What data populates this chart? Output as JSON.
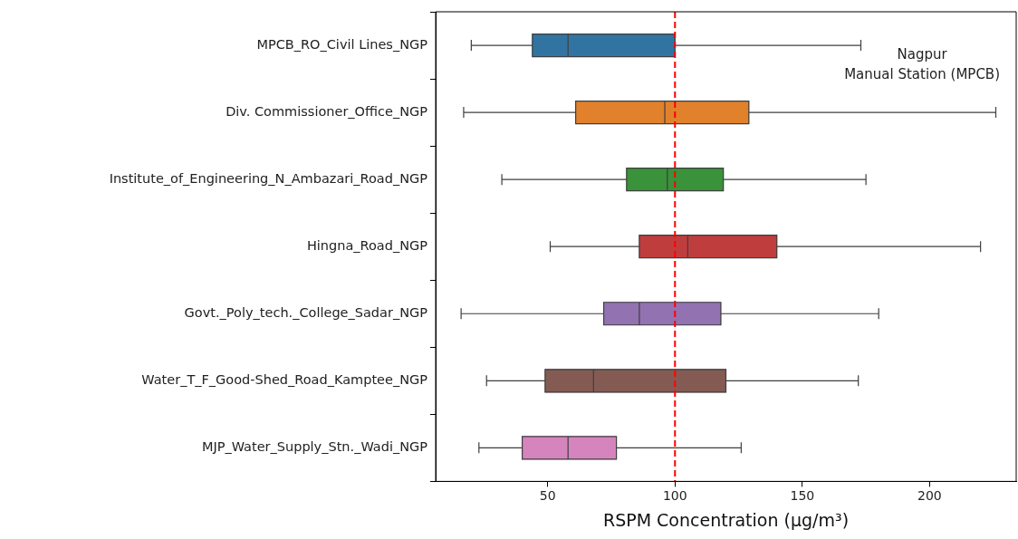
{
  "chart_data": {
    "type": "box",
    "orientation": "horizontal",
    "xlabel": "RSPM Concentration (µg/m³)",
    "categories": [
      "MPCB_RO_Civil Lines_NGP",
      "Div. Commissioner_Office_NGP",
      "Institute_of_Engineering_N_Ambazari_Road_NGP",
      "Hingna_Road_NGP",
      "Govt._Poly_tech._College_Sadar_NGP",
      "Water_T_F_Good-Shed_Road_Kamptee_NGP",
      "MJP_Water_Supply_Stn._Wadi_NGP"
    ],
    "boxes": [
      {
        "low": 20,
        "q1": 44,
        "median": 58,
        "q3": 100,
        "high": 173
      },
      {
        "low": 17,
        "q1": 61,
        "median": 96,
        "q3": 129,
        "high": 226
      },
      {
        "low": 32,
        "q1": 81,
        "median": 97,
        "q3": 119,
        "high": 175
      },
      {
        "low": 51,
        "q1": 86,
        "median": 105,
        "q3": 140,
        "high": 220
      },
      {
        "low": 16,
        "q1": 72,
        "median": 86,
        "q3": 118,
        "high": 180
      },
      {
        "low": 26,
        "q1": 49,
        "median": 68,
        "q3": 120,
        "high": 172
      },
      {
        "low": 23,
        "q1": 40,
        "median": 58,
        "q3": 77,
        "high": 126
      }
    ],
    "colors": [
      "#3274a1",
      "#e1812c",
      "#3a923a",
      "#c03d3e",
      "#9372b2",
      "#845b53",
      "#d684bd"
    ],
    "xlim": [
      6,
      234
    ],
    "xticks": [
      50,
      100,
      150,
      200
    ],
    "ref_lines": [
      {
        "axis": "x",
        "value": 100,
        "color": "#ff0000",
        "line_style": "dashed"
      }
    ],
    "annotations": [
      "Nagpur\nManual Station (MPCB)"
    ],
    "grid": false,
    "legend": false
  }
}
